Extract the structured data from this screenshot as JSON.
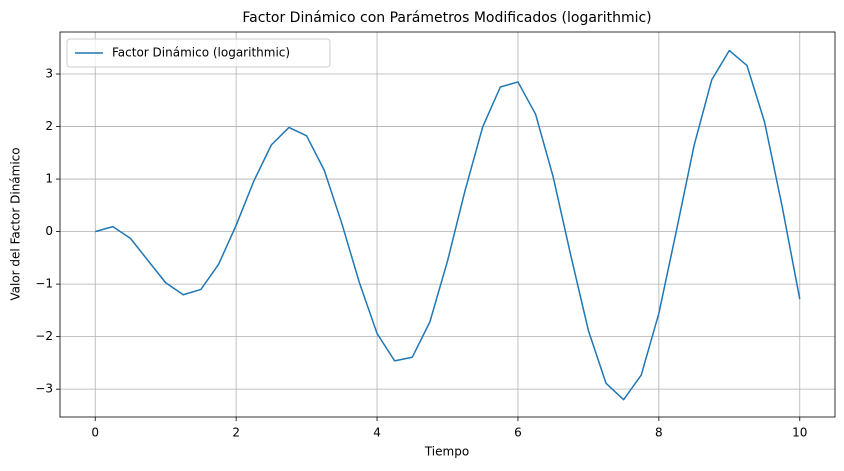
{
  "chart_data": {
    "type": "line",
    "title": "Factor Dinámico con Parámetros Modificados (logarithmic)",
    "xlabel": "Tiempo",
    "ylabel": "Valor del Factor Dinámico",
    "x": [
      0,
      0.25,
      0.5,
      0.75,
      1,
      1.25,
      1.5,
      1.75,
      2,
      2.25,
      2.5,
      2.75,
      3,
      3.25,
      3.5,
      3.75,
      4,
      4.25,
      4.5,
      4.75,
      5,
      5.25,
      5.5,
      5.75,
      6,
      6.25,
      6.5,
      6.75,
      7,
      7.25,
      7.5,
      7.75,
      8,
      8.25,
      8.5,
      8.75,
      9,
      9.25,
      9.5,
      9.75,
      10
    ],
    "series": [
      {
        "name": "Factor Dinámico (logarithmic)",
        "color": "#1f77b4",
        "values": [
          0,
          0.094,
          -0.129,
          -0.553,
          -0.974,
          -1.203,
          -1.101,
          -0.625,
          0.12,
          0.958,
          1.651,
          1.983,
          1.824,
          1.17,
          0.155,
          -0.975,
          -1.939,
          -2.462,
          -2.393,
          -1.719,
          -0.561,
          0.785,
          1.995,
          2.753,
          2.849,
          2.235,
          1.041,
          -0.454,
          -1.885,
          -2.888,
          -3.2,
          -2.731,
          -1.556,
          0.023,
          1.64,
          2.888,
          3.447,
          3.164,
          2.087,
          0.478,
          -1.286
        ]
      }
    ],
    "xlim": [
      -0.5,
      10.5
    ],
    "ylim": [
      -3.53,
      3.8
    ],
    "xticks": [
      0,
      2,
      4,
      6,
      8,
      10
    ],
    "yticks": [
      {
        "value": -3,
        "label": "−3"
      },
      {
        "value": -2,
        "label": "−2"
      },
      {
        "value": -1,
        "label": "−1"
      },
      0,
      1,
      2,
      3
    ],
    "grid": true,
    "legend": "upper left"
  }
}
